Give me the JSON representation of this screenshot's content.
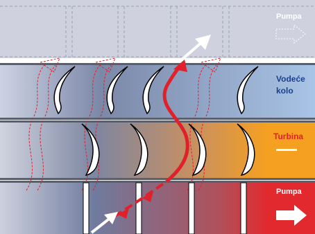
{
  "labels": {
    "top": "Pumpa",
    "impeller_line1": "Vodeće",
    "impeller_line2": "kolo",
    "turbine": "Turbina",
    "bottom": "Pumpa"
  },
  "colors": {
    "top_band": "#cfd2de",
    "impeller_left": "#cdd3e3",
    "impeller_mid": "#7c88a8",
    "impeller_right": "#a8c4e6",
    "turbine_left": "#d0d4e0",
    "turbine_mid": "#7d86a2",
    "turbine_right": "#f5a020",
    "bottom_left": "#cdd1de",
    "bottom_mid": "#6f7b9e",
    "bottom_right": "#e22a2e",
    "flow_arrow": "#e0202a",
    "label_blue": "#1c3f8c",
    "label_red": "#e0202a"
  }
}
